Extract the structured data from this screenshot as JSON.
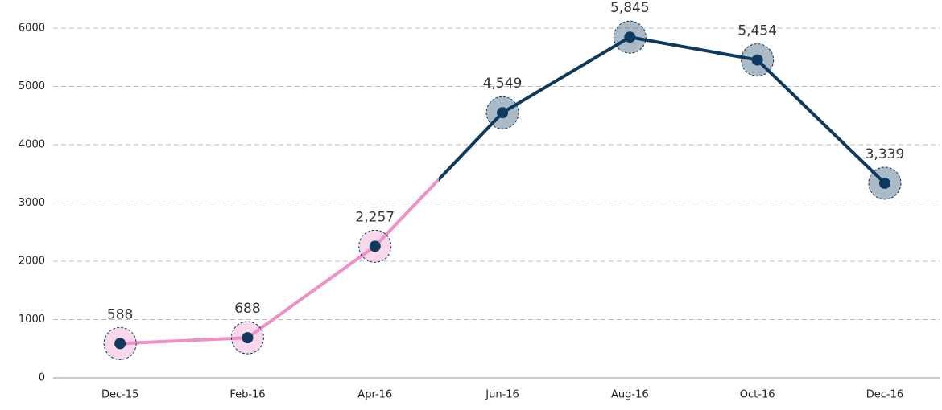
{
  "chart_data": {
    "type": "line",
    "categories": [
      "Dec-15",
      "Feb-16",
      "Apr-16",
      "Jun-16",
      "Aug-16",
      "Oct-16",
      "Dec-16"
    ],
    "values": [
      588,
      688,
      2257,
      4549,
      5845,
      5454,
      3339
    ],
    "value_labels": [
      "588",
      "688",
      "2,257",
      "4,549",
      "5,845",
      "5,454",
      "3,339"
    ],
    "colors": [
      "#ee8fc6",
      "#ee8fc6",
      "#ee8fc6",
      "#0d3a5e",
      "#0d3a5e",
      "#0d3a5e",
      "#0d3a5e"
    ],
    "marker_color": "#0d3a5e",
    "ylim": [
      0,
      6000
    ],
    "yticks": [
      0,
      1000,
      2000,
      3000,
      4000,
      5000,
      6000
    ],
    "grid": true
  }
}
